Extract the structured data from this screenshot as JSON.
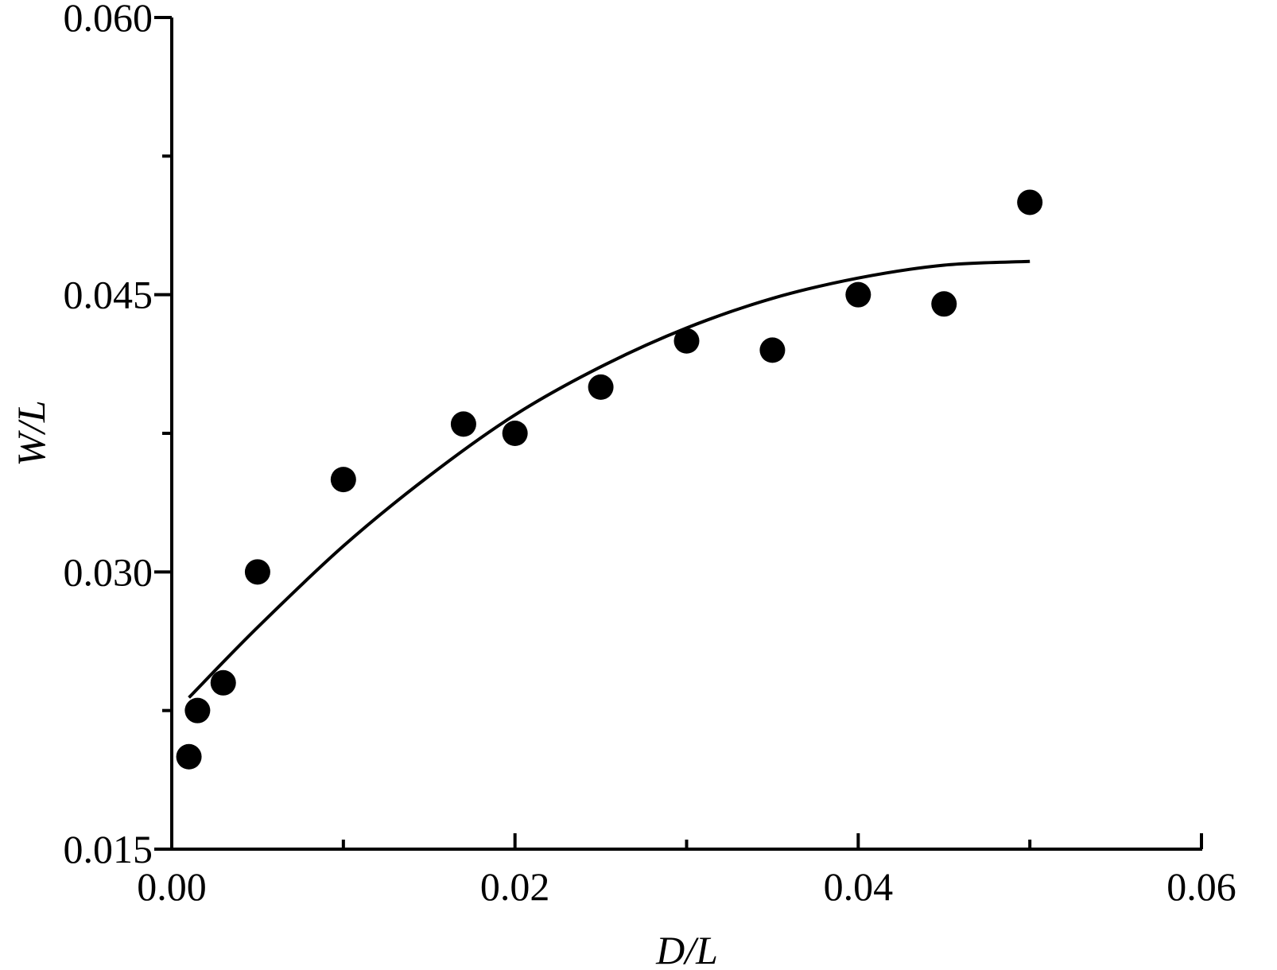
{
  "chart_data": {
    "type": "scatter",
    "xlabel": "D/L",
    "ylabel": "W/L",
    "xlim": [
      0.0,
      0.06
    ],
    "ylim": [
      0.015,
      0.06
    ],
    "x_ticks": [
      "0.00",
      "0.02",
      "0.04",
      "0.06"
    ],
    "x_minor_ticks": [
      0.01,
      0.03,
      0.05
    ],
    "y_ticks": [
      "0.015",
      "0.030",
      "0.045",
      "0.060"
    ],
    "y_minor_ticks": [
      0.0225,
      0.0375,
      0.0525
    ],
    "grid": false,
    "series": [
      {
        "type": "scatter",
        "marker": "filled-circle",
        "color": "#000000",
        "points": [
          {
            "x": 0.001,
            "y": 0.02
          },
          {
            "x": 0.0015,
            "y": 0.0225
          },
          {
            "x": 0.003,
            "y": 0.024
          },
          {
            "x": 0.005,
            "y": 0.03
          },
          {
            "x": 0.01,
            "y": 0.035
          },
          {
            "x": 0.017,
            "y": 0.038
          },
          {
            "x": 0.02,
            "y": 0.0375
          },
          {
            "x": 0.025,
            "y": 0.04
          },
          {
            "x": 0.03,
            "y": 0.0425
          },
          {
            "x": 0.035,
            "y": 0.042
          },
          {
            "x": 0.04,
            "y": 0.045
          },
          {
            "x": 0.045,
            "y": 0.0445
          },
          {
            "x": 0.05,
            "y": 0.05
          }
        ]
      },
      {
        "type": "line",
        "style": "fitted-curve",
        "color": "#000000",
        "points": [
          {
            "x": 0.001,
            "y": 0.0232
          },
          {
            "x": 0.005,
            "y": 0.027
          },
          {
            "x": 0.01,
            "y": 0.0314
          },
          {
            "x": 0.015,
            "y": 0.0352
          },
          {
            "x": 0.02,
            "y": 0.0385
          },
          {
            "x": 0.025,
            "y": 0.0411
          },
          {
            "x": 0.03,
            "y": 0.0432
          },
          {
            "x": 0.035,
            "y": 0.0448
          },
          {
            "x": 0.04,
            "y": 0.0459
          },
          {
            "x": 0.045,
            "y": 0.0466
          },
          {
            "x": 0.05,
            "y": 0.0468
          }
        ]
      }
    ]
  }
}
